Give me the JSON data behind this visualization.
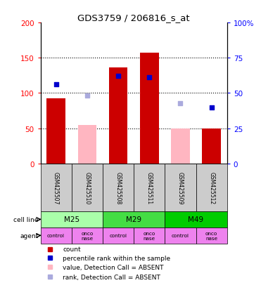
{
  "title": "GDS3759 / 206816_s_at",
  "samples": [
    "GSM425507",
    "GSM425510",
    "GSM425508",
    "GSM425511",
    "GSM425509",
    "GSM425512"
  ],
  "count_values": [
    93,
    null,
    136,
    157,
    null,
    50
  ],
  "count_absent_values": [
    null,
    55,
    null,
    null,
    50,
    null
  ],
  "rank_present": [
    56,
    null,
    62,
    61,
    null,
    40
  ],
  "rank_absent": [
    null,
    48,
    null,
    null,
    43,
    null
  ],
  "ylim_left": [
    0,
    200
  ],
  "ylim_right": [
    0,
    100
  ],
  "yticks_left": [
    0,
    50,
    100,
    150,
    200
  ],
  "yticks_right": [
    0,
    25,
    50,
    75,
    100
  ],
  "ytick_labels_right": [
    "0",
    "25",
    "50",
    "75",
    "100%"
  ],
  "cell_lines": [
    [
      "M25",
      0,
      2
    ],
    [
      "M29",
      2,
      4
    ],
    [
      "M49",
      4,
      6
    ]
  ],
  "cell_line_colors": [
    "#aaffaa",
    "#44dd44",
    "#00cc00"
  ],
  "agents": [
    "control",
    "onconase",
    "control",
    "onconase",
    "control",
    "onconase"
  ],
  "agent_color": "#ee82ee",
  "bar_color_present": "#cc0000",
  "bar_color_absent": "#ffb6c1",
  "dot_color_present": "#0000cc",
  "dot_color_absent": "#aaaadd",
  "background_color": "#ffffff",
  "legend_items": [
    {
      "color": "#cc0000",
      "label": "count"
    },
    {
      "color": "#0000cc",
      "label": "percentile rank within the sample"
    },
    {
      "color": "#ffb6c1",
      "label": "value, Detection Call = ABSENT"
    },
    {
      "color": "#aaaadd",
      "label": "rank, Detection Call = ABSENT"
    }
  ]
}
